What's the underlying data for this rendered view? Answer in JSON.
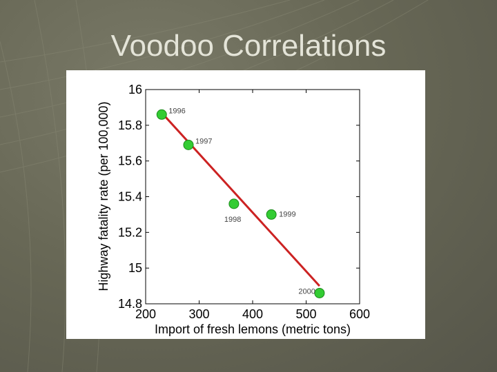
{
  "slide": {
    "title": "Voodoo Correlations"
  },
  "chart_data": {
    "type": "scatter",
    "title": "",
    "xlabel": "Import of fresh lemons (metric tons)",
    "ylabel": "Highway fatality rate (per 100,000)",
    "xlim": [
      200,
      600
    ],
    "ylim": [
      14.8,
      16
    ],
    "xticks": [
      "200",
      "300",
      "400",
      "500",
      "600"
    ],
    "yticks": [
      "14.8",
      "15",
      "15.2",
      "15.4",
      "15.6",
      "15.8",
      "16"
    ],
    "grid": false,
    "series": [
      {
        "points": [
          {
            "label": "1996",
            "x": 230,
            "y": 15.86
          },
          {
            "label": "1997",
            "x": 280,
            "y": 15.69
          },
          {
            "label": "1998",
            "x": 365,
            "y": 15.36
          },
          {
            "label": "1999",
            "x": 435,
            "y": 15.3
          },
          {
            "label": "2000",
            "x": 525,
            "y": 14.86
          }
        ],
        "marker_color": "#33cc33"
      }
    ],
    "fit_line": {
      "x": [
        230,
        525
      ],
      "y": [
        15.87,
        14.9
      ],
      "color": "#cc2222"
    }
  }
}
